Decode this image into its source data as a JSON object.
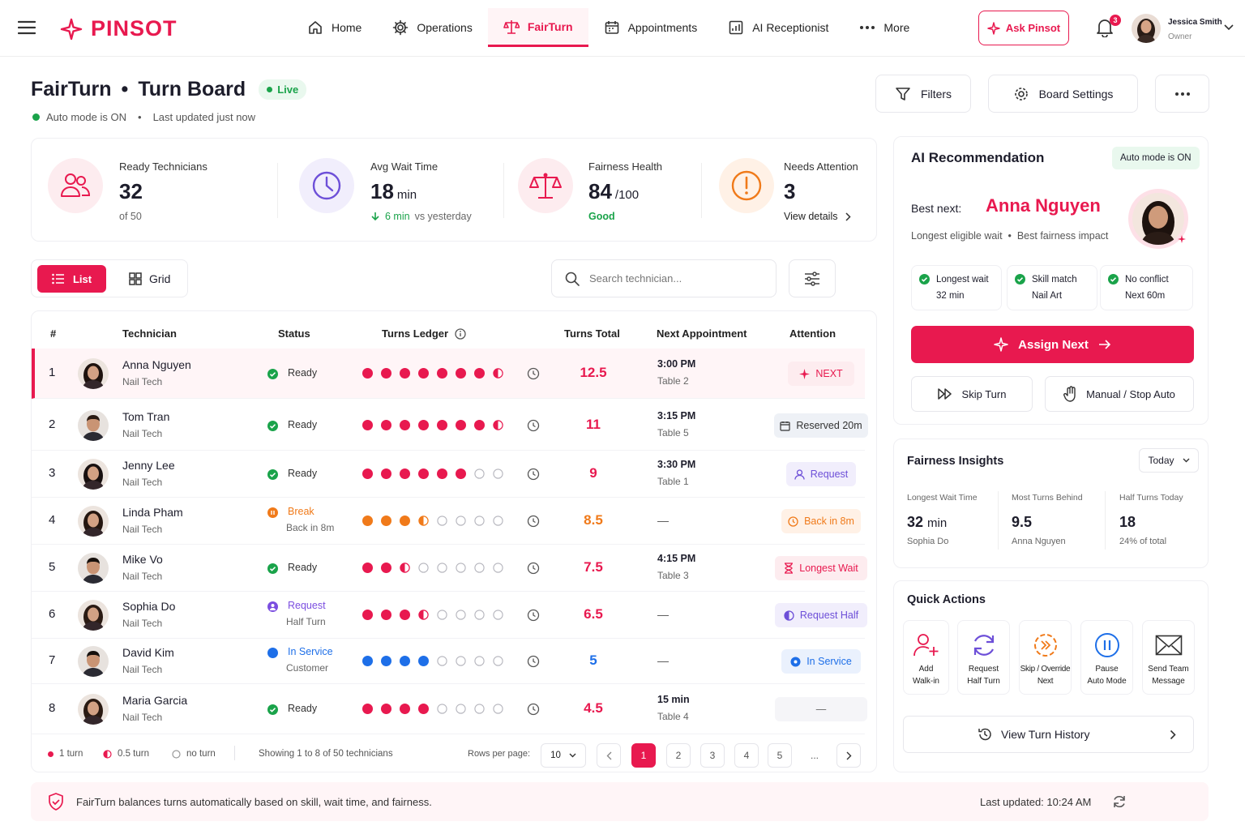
{
  "brand": {
    "name": "PINSOT",
    "accent": "#e8194f"
  },
  "nav": {
    "items": [
      {
        "label": "Home",
        "icon": "home-icon"
      },
      {
        "label": "Operations",
        "icon": "gear-icon"
      },
      {
        "label": "FairTurn",
        "icon": "scale-icon",
        "active": true
      },
      {
        "label": "Appointments",
        "icon": "calendar-icon"
      },
      {
        "label": "AI Receptionist",
        "icon": "chart-icon"
      },
      {
        "label": "More",
        "icon": "more-icon"
      }
    ],
    "ask_label": "Ask Pinsot",
    "notif_count": "3",
    "user_name": "Jessica Smith",
    "user_role": "Owner"
  },
  "header": {
    "title": "FairTurn",
    "separator": "•",
    "subtitle": "Turn Board",
    "live_label": "Live",
    "auto_mode": "Auto mode is ON",
    "bullet": "•",
    "last_updated": "Last updated just now",
    "filters_label": "Filters",
    "settings_label": "Board Settings"
  },
  "stats": {
    "ready": {
      "label": "Ready Technicians",
      "value": "32",
      "sub": "of 50"
    },
    "wait": {
      "label": "Avg Wait Time",
      "value": "18",
      "unit": "min",
      "trend": "6 min",
      "trend_suffix": "vs yesterday"
    },
    "fairness": {
      "label": "Fairness Health",
      "value": "84",
      "unit": "/100",
      "sub": "Good"
    },
    "attention": {
      "label": "Needs Attention",
      "value": "3",
      "link": "View details"
    }
  },
  "toolbar": {
    "list_label": "List",
    "grid_label": "Grid",
    "search_placeholder": "Search technician..."
  },
  "table": {
    "headers": {
      "num": "#",
      "tech": "Technician",
      "status": "Status",
      "ledger": "Turns Ledger",
      "total": "Turns Total",
      "next": "Next Appointment",
      "attention": "Attention"
    },
    "rows": [
      {
        "n": "1",
        "name": "Anna Nguyen",
        "role": "Nail Tech",
        "status": "Ready",
        "status_sub": "",
        "kind": "ready",
        "ledger": [
          1,
          1,
          1,
          1,
          1,
          1,
          1,
          0.5
        ],
        "total": "12.5",
        "appt_time": "3:00 PM",
        "appt_sub": "Table 2",
        "att": "NEXT",
        "att_kind": "next"
      },
      {
        "n": "2",
        "name": "Tom Tran",
        "role": "Nail Tech",
        "status": "Ready",
        "status_sub": "",
        "kind": "ready",
        "ledger": [
          1,
          1,
          1,
          1,
          1,
          1,
          1,
          0.5
        ],
        "total": "11",
        "appt_time": "3:15 PM",
        "appt_sub": "Table 5",
        "att": "Reserved 20m",
        "att_kind": "reserved"
      },
      {
        "n": "3",
        "name": "Jenny Lee",
        "role": "Nail Tech",
        "status": "Ready",
        "status_sub": "",
        "kind": "ready",
        "ledger": [
          1,
          1,
          1,
          1,
          1,
          1,
          0,
          0
        ],
        "total": "9",
        "appt_time": "3:30 PM",
        "appt_sub": "Table 1",
        "att": "Request",
        "att_kind": "request"
      },
      {
        "n": "4",
        "name": "Linda Pham",
        "role": "Nail Tech",
        "status": "Break",
        "status_sub": "Back in 8m",
        "kind": "break",
        "ledger": [
          1,
          1,
          1,
          0.5,
          0,
          0,
          0,
          0
        ],
        "total": "8.5",
        "appt_time": "—",
        "appt_sub": "",
        "att": "Back in 8m",
        "att_kind": "back"
      },
      {
        "n": "5",
        "name": "Mike Vo",
        "role": "Nail Tech",
        "status": "Ready",
        "status_sub": "",
        "kind": "ready",
        "ledger": [
          1,
          1,
          0.5,
          0,
          0,
          0,
          0,
          0
        ],
        "total": "7.5",
        "appt_time": "4:15 PM",
        "appt_sub": "Table 3",
        "att": "Longest Wait",
        "att_kind": "longest"
      },
      {
        "n": "6",
        "name": "Sophia Do",
        "role": "Nail Tech",
        "status": "Request",
        "status_sub": "Half Turn",
        "kind": "request",
        "ledger": [
          1,
          1,
          1,
          0.5,
          0,
          0,
          0,
          0
        ],
        "total": "6.5",
        "appt_time": "—",
        "appt_sub": "",
        "att": "Request Half",
        "att_kind": "reqhalf"
      },
      {
        "n": "7",
        "name": "David Kim",
        "role": "Nail Tech",
        "status": "In Service",
        "status_sub": "Customer",
        "kind": "service",
        "ledger": [
          1,
          1,
          1,
          1,
          0,
          0,
          0,
          0
        ],
        "total": "5",
        "appt_time": "—",
        "appt_sub": "",
        "att": "In Service",
        "att_kind": "service"
      },
      {
        "n": "8",
        "name": "Maria Garcia",
        "role": "Nail Tech",
        "status": "Ready",
        "status_sub": "",
        "kind": "ready",
        "ledger": [
          1,
          1,
          1,
          1,
          0,
          0,
          0,
          0
        ],
        "total": "4.5",
        "appt_time": "15 min",
        "appt_sub": "Table 4",
        "att": "—",
        "att_kind": "none"
      }
    ],
    "legend": {
      "full": "1 turn",
      "half": "0.5 turn",
      "none": "no turn"
    },
    "showing": "Showing 1 to 8 of 50 technicians",
    "rows_per_page_label": "Rows per page:",
    "rows_per_page": "10",
    "pages": [
      "1",
      "2",
      "3",
      "4",
      "5",
      "..."
    ]
  },
  "recommendation": {
    "title": "AI Recommendation",
    "auto_badge": "Auto mode is ON",
    "best_label": "Best next:",
    "best_name": "Anna Nguyen",
    "reason": "Longest eligible wait  •  Best fairness impact",
    "chips": [
      {
        "label": "Longest wait",
        "value": "32 min"
      },
      {
        "label": "Skill match",
        "value": "Nail Art"
      },
      {
        "label": "No conflict",
        "value": "Next 60m"
      }
    ],
    "assign_label": "Assign Next",
    "skip_label": "Skip Turn",
    "manual_label": "Manual / Stop Auto"
  },
  "insights": {
    "title": "Fairness Insights",
    "period": "Today",
    "cols": [
      {
        "label": "Longest Wait Time",
        "value": "32",
        "unit": "min",
        "sub": "Sophia Do"
      },
      {
        "label": "Most Turns Behind",
        "value": "9.5",
        "unit": "",
        "sub": "Anna Nguyen"
      },
      {
        "label": "Half Turns Today",
        "value": "18",
        "unit": "",
        "sub": "24% of total"
      }
    ]
  },
  "quick_actions": {
    "title": "Quick Actions",
    "items": [
      {
        "line1": "Add",
        "line2": "Walk-in"
      },
      {
        "line1": "Request",
        "line2": "Half Turn"
      },
      {
        "line1": "Skip / Override",
        "line2": "Next"
      },
      {
        "line1": "Pause",
        "line2": "Auto Mode"
      },
      {
        "line1": "Send Team",
        "line2": "Message"
      }
    ],
    "history_label": "View Turn History"
  },
  "footer": {
    "info": "FairTurn balances turns automatically based on skill, wait time, and fairness.",
    "updated": "Last updated: 10:24 AM"
  },
  "colors": {
    "ready": "#1aa34a",
    "break": "#f07a1a",
    "request": "#7b4ee0",
    "service": "#1e6fe8",
    "accent": "#e8194f"
  }
}
